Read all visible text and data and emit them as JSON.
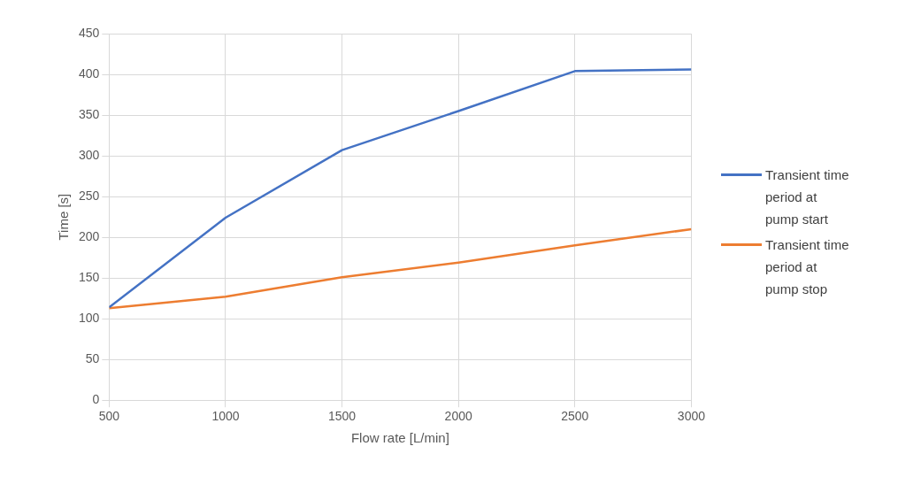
{
  "chart_data": {
    "type": "line",
    "xlabel": "Flow rate [L/min]",
    "ylabel": "Time [s]",
    "x": [
      500,
      1000,
      1500,
      2000,
      2500,
      3000
    ],
    "series": [
      {
        "name": "Transient time period at pump start",
        "color": "#4472c4",
        "values": [
          114,
          224,
          307,
          355,
          404,
          406
        ]
      },
      {
        "name": "Transient time period at pump stop",
        "color": "#ed7d31",
        "values": [
          113,
          127,
          151,
          169,
          190,
          210
        ]
      }
    ],
    "xlim": [
      500,
      3000
    ],
    "xticks": [
      500,
      1000,
      1500,
      2000,
      2500,
      3000
    ],
    "ylim": [
      0,
      450
    ],
    "yticks": [
      0,
      50,
      100,
      150,
      200,
      250,
      300,
      350,
      400,
      450
    ],
    "grid": true,
    "legend": "right",
    "marker": "none",
    "line_style": "solid"
  }
}
